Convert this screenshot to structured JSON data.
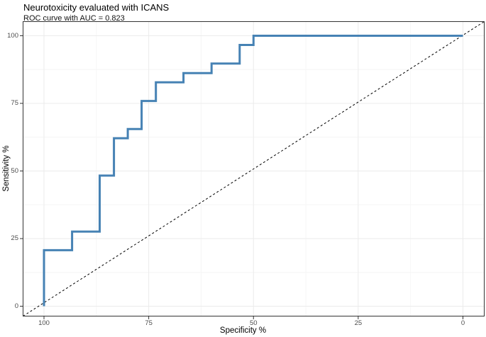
{
  "chart_data": {
    "type": "line",
    "subtype": "roc-step-curve",
    "title": "Neurotoxicity evaluated with ICANS",
    "subtitle": "ROC curve with AUC = 0.823",
    "auc": 0.823,
    "xlabel": "Specificity %",
    "ylabel": "Sensitivity %",
    "x_axis": {
      "ticks": [
        "100",
        "75",
        "50",
        "25",
        "0"
      ],
      "reversed": true,
      "range": [
        100,
        0
      ]
    },
    "y_axis": {
      "ticks": [
        "0",
        "25",
        "50",
        "75",
        "100"
      ],
      "range": [
        0,
        100
      ]
    },
    "grid": {
      "major": true,
      "minor": true
    },
    "legend": "none",
    "roc_curve": {
      "name": "ROC curve",
      "points_spec_sens": [
        [
          100,
          0
        ],
        [
          100,
          20.7
        ],
        [
          93.3,
          20.7
        ],
        [
          93.3,
          27.6
        ],
        [
          86.7,
          27.6
        ],
        [
          86.7,
          48.3
        ],
        [
          83.3,
          48.3
        ],
        [
          83.3,
          62.1
        ],
        [
          80,
          62.1
        ],
        [
          80,
          65.5
        ],
        [
          76.7,
          65.5
        ],
        [
          76.7,
          75.9
        ],
        [
          73.3,
          75.9
        ],
        [
          73.3,
          82.8
        ],
        [
          66.7,
          82.8
        ],
        [
          66.7,
          86.2
        ],
        [
          60,
          86.2
        ],
        [
          60,
          89.7
        ],
        [
          53.3,
          89.7
        ],
        [
          53.3,
          96.6
        ],
        [
          50,
          96.6
        ],
        [
          50,
          100
        ],
        [
          0,
          100
        ]
      ]
    },
    "reference_line": {
      "from_spec_sens": [
        100,
        0
      ],
      "to_spec_sens": [
        0,
        100
      ],
      "style": "dashed"
    },
    "colors": {
      "curve": "#4682b4",
      "reference": "#000000",
      "grid_major": "#ebebeb",
      "grid_minor": "#f6f6f6",
      "panel_border": "#333333",
      "panel_bg": "#ffffff",
      "tick_mark": "#333333",
      "tick_label": "#4d4d4d",
      "text": "#000000"
    }
  }
}
